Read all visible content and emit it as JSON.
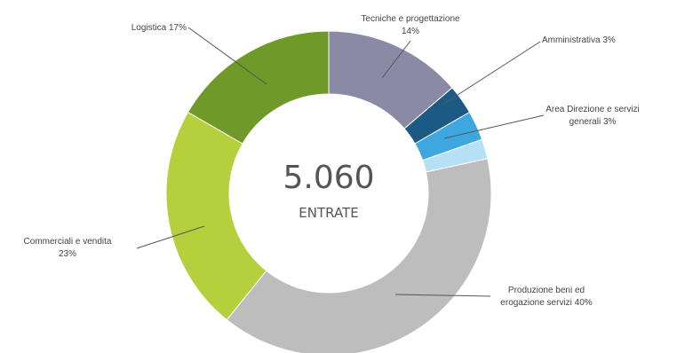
{
  "chart_data": {
    "type": "pie",
    "variant": "donut",
    "center": {
      "value": "5.060",
      "label": "ENTRATE"
    },
    "slices": [
      {
        "name": "Tecniche e progettazione",
        "value": 14,
        "label_lines": [
          "Tecniche e progettazione",
          "14%"
        ],
        "color": "#8a8aa6"
      },
      {
        "name": "Amministrativa",
        "value": 3,
        "label_lines": [
          "Amministrativa 3%"
        ],
        "color": "#1c5a86"
      },
      {
        "name": "Area Direzione e servizi generali",
        "value": 3,
        "label_lines": [
          "Area Direzione e servizi",
          "generali 3%"
        ],
        "color": "#3fa7df"
      },
      {
        "name": "Area Direzione e servizi generali (light)",
        "value": 2,
        "label_lines": [],
        "color": "#b6e1f4"
      },
      {
        "name": "Produzione beni ed erogazione servizi",
        "value": 40,
        "label_lines": [
          "Produzione beni ed",
          "erogazione servizi 40%"
        ],
        "color": "#bdbdbd"
      },
      {
        "name": "Commerciali e vendita",
        "value": 23,
        "label_lines": [
          "Commerciali e vendita",
          "23%"
        ],
        "color": "#b6cf3c"
      },
      {
        "name": "Logistica",
        "value": 17,
        "label_lines": [
          "Logistica 17%"
        ],
        "color": "#6f9a2a"
      }
    ]
  }
}
